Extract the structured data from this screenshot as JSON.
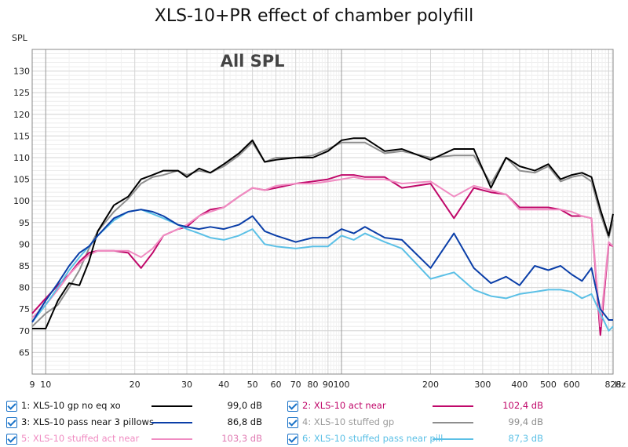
{
  "chart_data": {
    "type": "line",
    "title": "XLS-10+PR effect of chamber polyfill",
    "annotation": "All SPL",
    "ylabel": "SPL",
    "xunit": "Hz",
    "xscale": "log",
    "xlim": [
      9,
      828
    ],
    "ylim": [
      60,
      135
    ],
    "grid": true,
    "x_ticks": [
      9,
      10,
      20,
      30,
      40,
      50,
      60,
      70,
      80,
      90,
      100,
      200,
      300,
      400,
      500,
      600,
      828
    ],
    "x_tick_labels": [
      "9",
      "10",
      "20",
      "30",
      "40",
      "50",
      "60",
      "70",
      "80",
      "90",
      "100",
      "200",
      "300",
      "400",
      "500",
      "600",
      "828"
    ],
    "y_ticks": [
      65,
      70,
      75,
      80,
      85,
      90,
      95,
      100,
      105,
      110,
      115,
      120,
      125,
      130
    ],
    "x": [
      9,
      10,
      11,
      12,
      13,
      14,
      15,
      17,
      19,
      21,
      23,
      25,
      28,
      30,
      33,
      36,
      40,
      45,
      50,
      55,
      60,
      70,
      80,
      90,
      100,
      110,
      120,
      140,
      160,
      200,
      240,
      280,
      320,
      360,
      400,
      450,
      500,
      550,
      600,
      650,
      700,
      750,
      800,
      828
    ],
    "series": [
      {
        "name": "1: XLS-10 gp no eq xo",
        "color": "#000000",
        "value_label": "99,0 dB",
        "values": [
          70.5,
          70.5,
          77,
          81,
          80.5,
          86,
          93,
          99,
          101,
          105,
          106,
          107,
          107,
          105.5,
          107.5,
          106.5,
          108.5,
          111,
          114,
          109,
          109.5,
          110,
          110,
          111.5,
          114,
          114.5,
          114.5,
          111.5,
          112,
          109.5,
          112,
          112,
          103,
          110,
          108,
          107,
          108.5,
          105,
          106,
          106.5,
          105.5,
          98,
          92,
          97
        ]
      },
      {
        "name": "2: XLS-10 act near",
        "color": "#c0086a",
        "value_label": "102,4 dB",
        "values": [
          74,
          77.5,
          80.5,
          83,
          86,
          88,
          88.5,
          88.5,
          88,
          84.5,
          88,
          92,
          93.5,
          94,
          96.5,
          98,
          98.5,
          101,
          103,
          102.5,
          103,
          104,
          104.5,
          105,
          106,
          106,
          105.5,
          105.5,
          103,
          104,
          96,
          103,
          102,
          101.5,
          98.5,
          98.5,
          98.5,
          98,
          96.5,
          96.5,
          96,
          69,
          90,
          89.5
        ]
      },
      {
        "name": "3: XLS-10 pass near 3 pillows",
        "color": "#0a3ea8",
        "value_label": "86,8 dB",
        "values": [
          72,
          77,
          81,
          85,
          88,
          89.5,
          92,
          96,
          97.5,
          98,
          97.5,
          96.5,
          94.5,
          94,
          93.5,
          94,
          93.5,
          94.5,
          96.5,
          93,
          92,
          90.5,
          91.5,
          91.5,
          93.5,
          92.5,
          94,
          91.5,
          91,
          84.5,
          92.5,
          84.5,
          81,
          82.5,
          80.5,
          85,
          84,
          85,
          83,
          81.5,
          84.5,
          75,
          72.5,
          72.5
        ]
      },
      {
        "name": "4: XLS-10 stuffed gp",
        "color": "#8e8e8e",
        "value_label": "99,4 dB",
        "values": [
          71,
          74,
          76,
          80,
          84,
          89,
          93,
          97.5,
          100.5,
          104,
          105.5,
          106,
          107,
          106,
          107,
          106.5,
          108,
          110.5,
          113.5,
          109,
          110,
          110,
          110.5,
          112,
          113.5,
          113.5,
          113.5,
          111,
          111.5,
          110,
          110.5,
          110.5,
          104,
          110,
          107,
          106.5,
          108,
          104.5,
          105.5,
          106,
          104.5,
          97,
          91.5,
          95.5
        ]
      },
      {
        "name": "5: XLS-10 stuffed act near",
        "color": "#f08cc2",
        "value_label": "103,3 dB",
        "values": [
          73,
          76,
          79.5,
          83,
          85.5,
          87.5,
          88.5,
          88.5,
          88.5,
          87,
          89,
          92,
          93.5,
          94.5,
          96.5,
          97.5,
          98.5,
          101,
          103,
          102.5,
          103.5,
          104,
          104,
          104.5,
          105,
          105.5,
          105,
          105,
          104,
          104.5,
          101,
          103.5,
          102.5,
          101.5,
          98,
          98,
          98,
          98,
          97.5,
          96.5,
          96,
          71,
          90.5,
          89.5
        ]
      },
      {
        "name": "6: XLS-10 stuffed pass near pill",
        "color": "#5bc0e6",
        "value_label": "87,3 dB",
        "values": [
          72,
          76,
          80,
          84,
          87,
          89.5,
          92,
          95.5,
          97.5,
          98,
          97,
          96,
          94.5,
          93.5,
          92.5,
          91.5,
          91,
          92,
          93.5,
          90,
          89.5,
          89,
          89.5,
          89.5,
          92,
          91,
          92.5,
          90.5,
          89,
          82,
          83.5,
          79.5,
          78,
          77.5,
          78.5,
          79,
          79.5,
          79.5,
          79,
          77.5,
          78.5,
          74,
          70,
          71
        ]
      }
    ]
  }
}
